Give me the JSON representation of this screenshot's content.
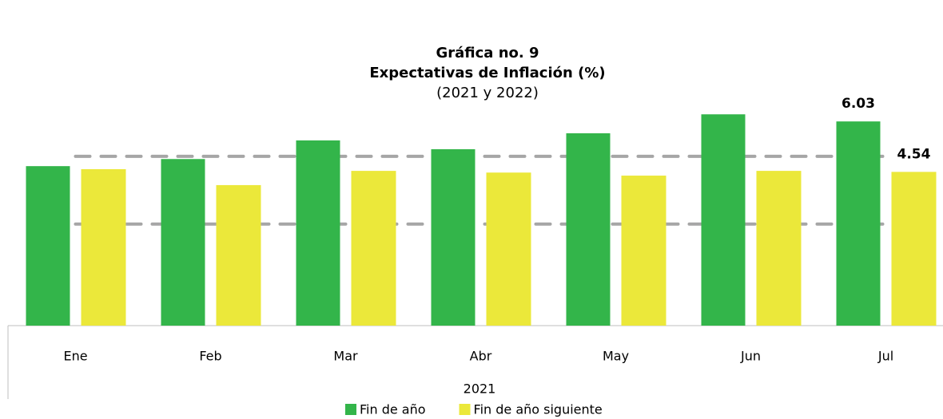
{
  "chart_data": {
    "type": "bar",
    "title": "Gráfica no. 9",
    "subtitle": "Expectativas de Inflación (%)",
    "note": "(2021 y 2022)",
    "categories": [
      "Ene",
      "Feb",
      "Mar",
      "Abr",
      "May",
      "Jun",
      "Jul"
    ],
    "group_label": "2021",
    "series": [
      {
        "name": "Fin de año",
        "color": "#33b54a",
        "values": [
          4.71,
          4.92,
          5.47,
          5.21,
          5.68,
          6.24,
          6.03
        ],
        "value_labels": [
          null,
          null,
          null,
          null,
          null,
          null,
          "6.03"
        ]
      },
      {
        "name": "Fin de año siguiente",
        "color": "#ebe83a",
        "values": [
          4.62,
          4.15,
          4.57,
          4.52,
          4.43,
          4.57,
          4.54
        ],
        "value_labels": [
          null,
          null,
          null,
          null,
          null,
          null,
          "4.54"
        ]
      }
    ],
    "reference_lines": [
      5,
      3
    ],
    "reference_color": "#a6a6a6",
    "ylim": [
      0,
      7
    ],
    "legend": "bottom"
  }
}
